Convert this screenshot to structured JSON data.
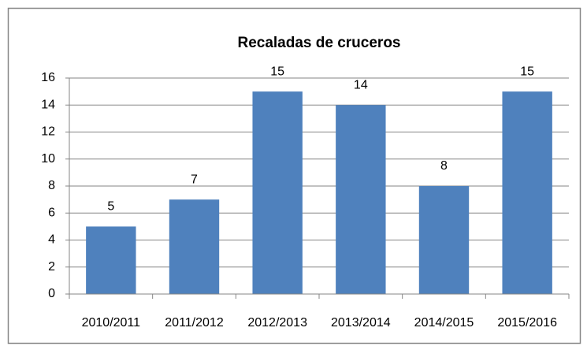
{
  "chart_data": {
    "type": "bar",
    "title": "Recaladas de cruceros",
    "categories": [
      "2010/2011",
      "2011/2012",
      "2012/2013",
      "2013/2014",
      "2014/2015",
      "2015/2016"
    ],
    "values": [
      5,
      7,
      15,
      14,
      8,
      15
    ],
    "color": "#4f81bd",
    "ylim": [
      0,
      16
    ],
    "yticks": [
      0,
      2,
      4,
      6,
      8,
      10,
      12,
      14,
      16
    ],
    "grid": true
  }
}
